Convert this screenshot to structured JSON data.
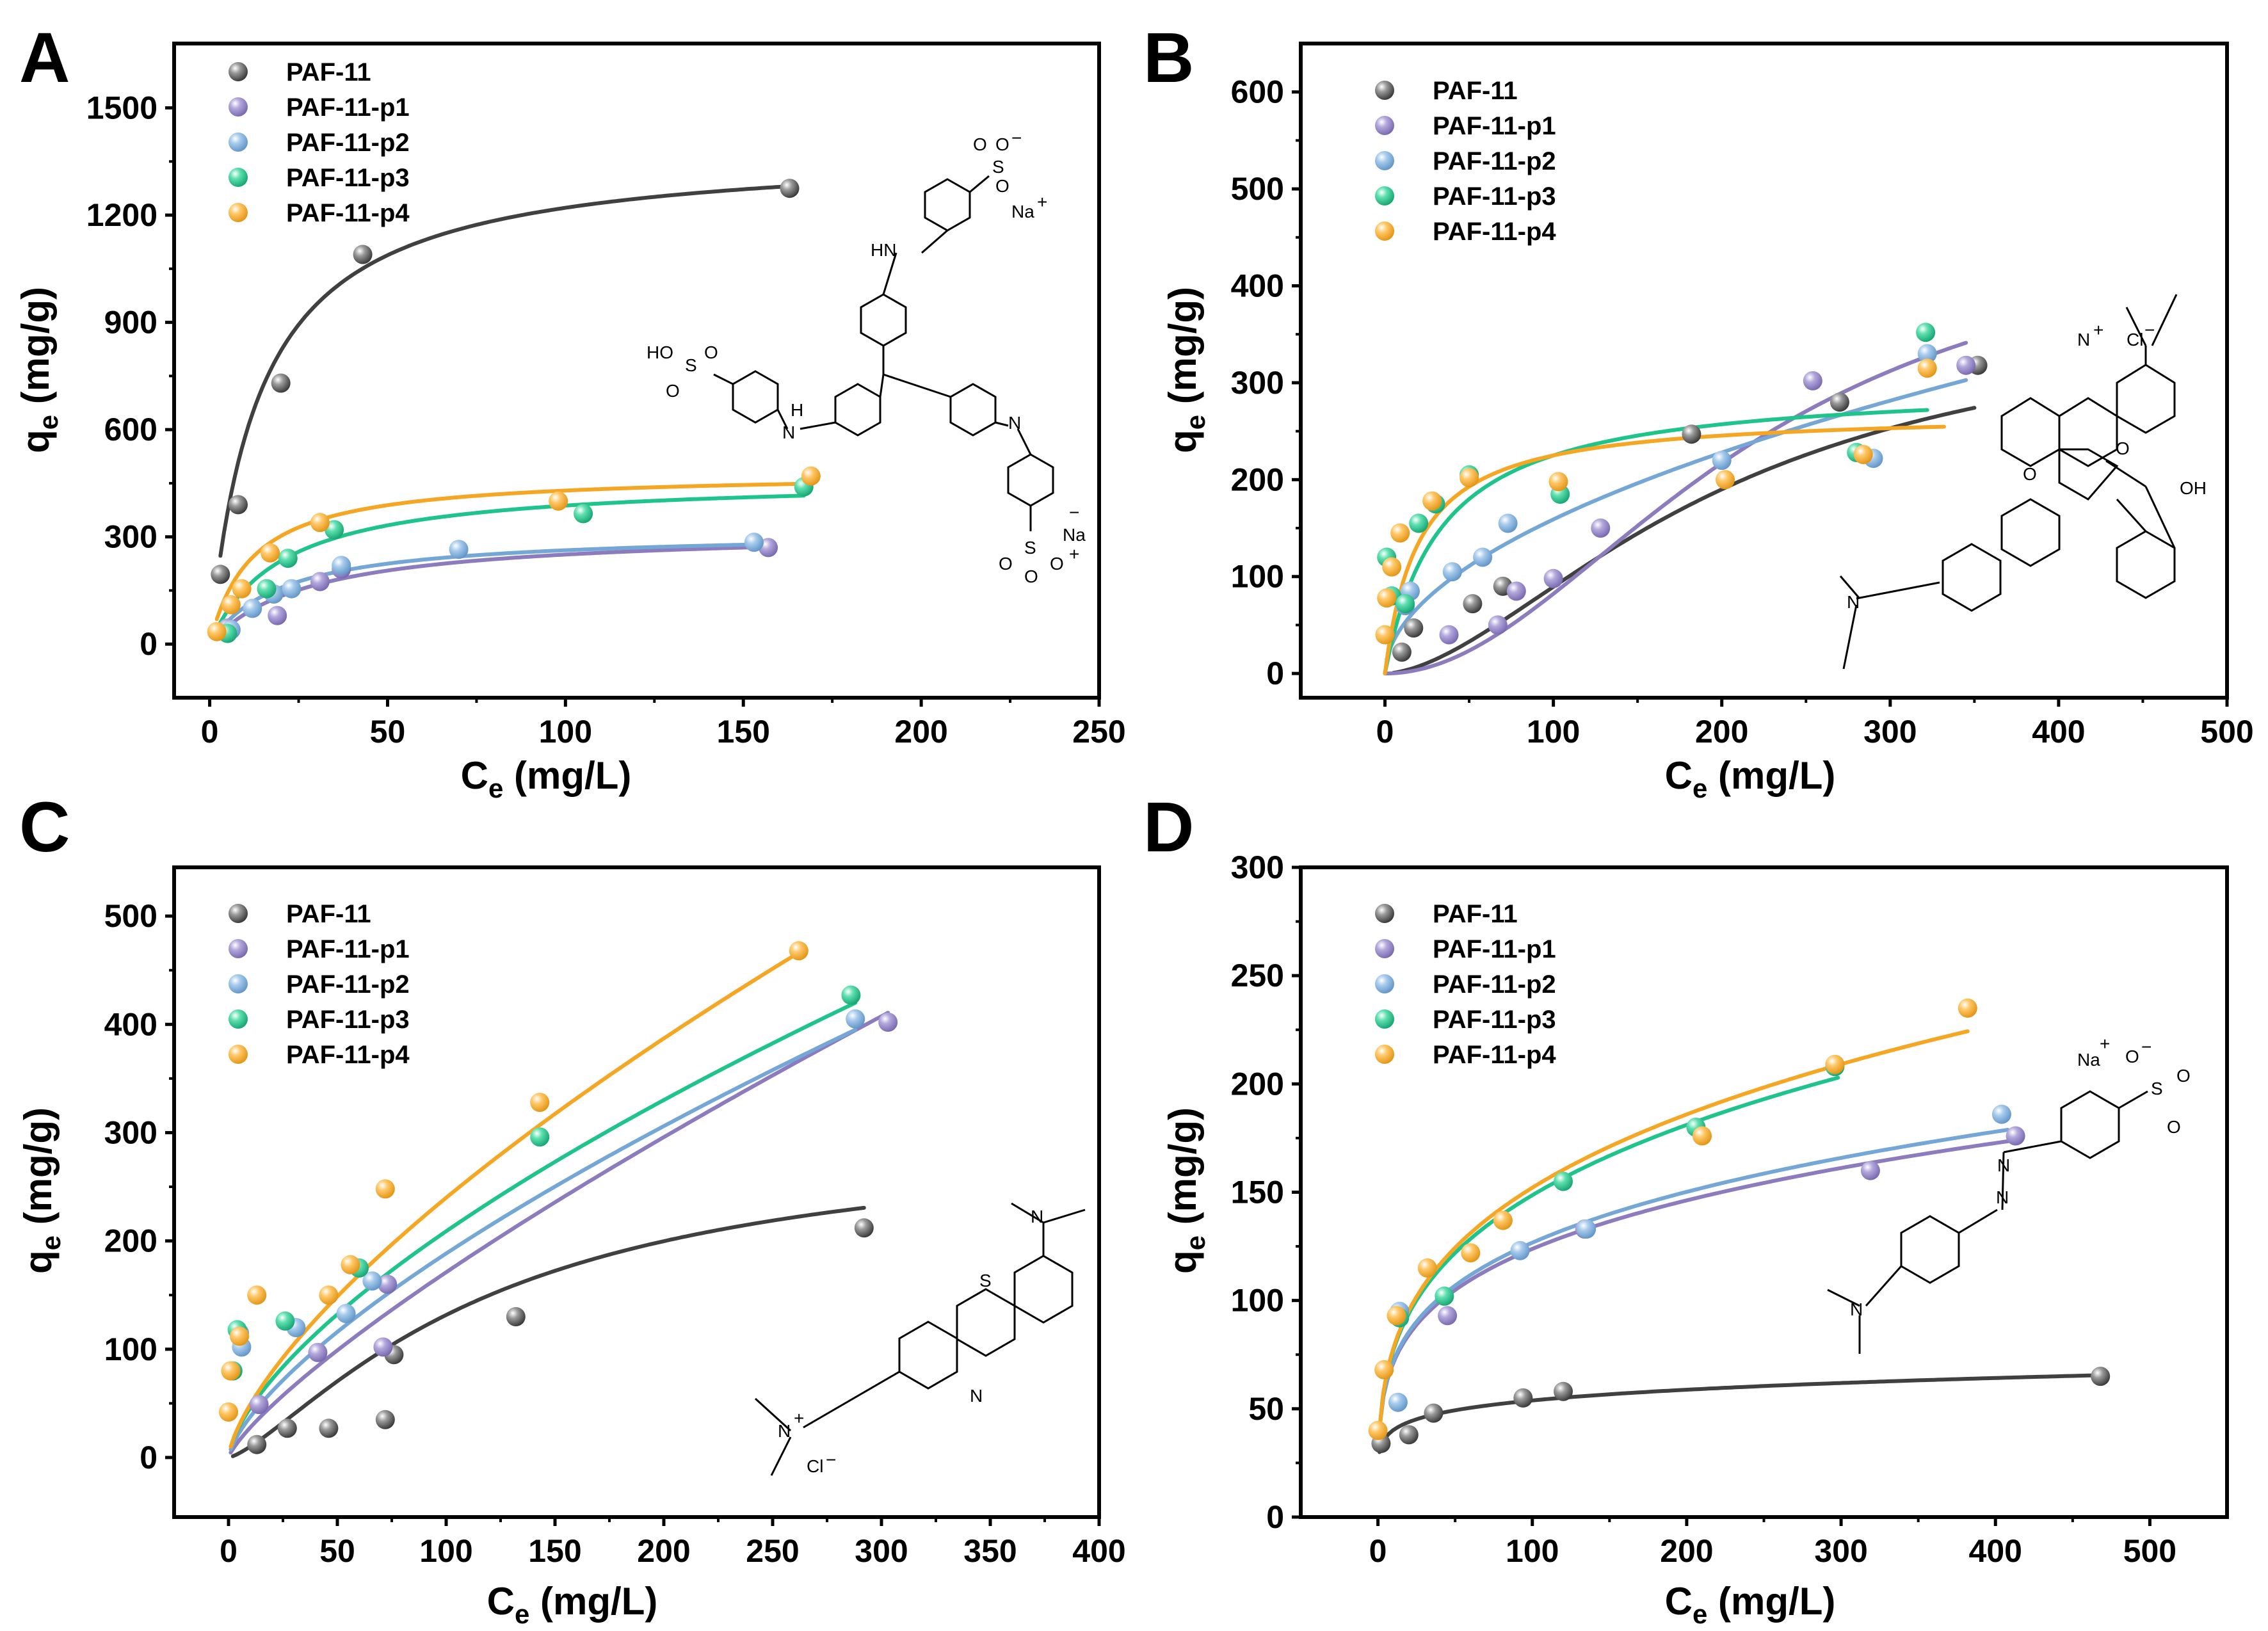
{
  "colors": {
    "PAF-11": "#404040",
    "PAF-11-p1": "#8c7bbd",
    "PAF-11-p2": "#74a6d6",
    "PAF-11-p3": "#1ec48a",
    "PAF-11-p4": "#f5a623"
  },
  "molecules": {
    "A": [
      "HO",
      "S",
      "O",
      "O",
      "H",
      "N",
      "HN",
      "S",
      "O",
      "O",
      "O",
      "−",
      "Na",
      "+",
      "N",
      "S",
      "O",
      "O",
      "O",
      "−",
      "Na",
      "+"
    ],
    "B": [
      "N",
      "+",
      "Cl",
      "−",
      "O",
      "N",
      "O",
      "OH"
    ],
    "C": [
      "N",
      "S",
      "N",
      "N",
      "+",
      "Cl",
      "−"
    ],
    "D": [
      "Na",
      "+",
      "O",
      "−",
      "S",
      "O",
      "O",
      "N",
      "N",
      "N"
    ]
  },
  "chart_data": [
    {
      "panel": "A",
      "type": "scatter",
      "xlabel": "C",
      "xlabel_sub": "e",
      "xlabel_unit": " (mg/L)",
      "ylabel": "q",
      "ylabel_sub": "e",
      "ylabel_unit": " (mg/g)",
      "xlim": [
        -10,
        250
      ],
      "ylim": [
        -150,
        1680
      ],
      "xticks": [
        0,
        50,
        100,
        150,
        200,
        250
      ],
      "yticks": [
        0,
        300,
        600,
        900,
        1200,
        1500
      ],
      "legend": "top-left",
      "grid": false,
      "series": [
        {
          "name": "PAF-11",
          "x": [
            3,
            8,
            20,
            43,
            163
          ],
          "y": [
            195,
            390,
            730,
            1090,
            1275
          ],
          "fit": {
            "model": "langmuir",
            "qm": 1390,
            "k": 0.072,
            "x0": 3,
            "x1": 163
          }
        },
        {
          "name": "PAF-11-p1",
          "x": [
            5,
            19,
            31,
            37,
            157
          ],
          "y": [
            45,
            80,
            175,
            210,
            270
          ],
          "fit": {
            "model": "langmuir",
            "qm": 320,
            "k": 0.036,
            "x0": 2,
            "x1": 157
          }
        },
        {
          "name": "PAF-11-p2",
          "x": [
            6,
            12,
            18,
            23,
            37,
            70,
            153
          ],
          "y": [
            40,
            100,
            140,
            155,
            220,
            265,
            285
          ],
          "fit": {
            "model": "langmuir",
            "qm": 315,
            "k": 0.05,
            "x0": 2,
            "x1": 153
          }
        },
        {
          "name": "PAF-11-p3",
          "x": [
            5,
            16,
            22,
            35,
            105,
            167
          ],
          "y": [
            30,
            155,
            240,
            320,
            365,
            440
          ],
          "fit": {
            "model": "langmuir",
            "qm": 465,
            "k": 0.05,
            "x0": 2,
            "x1": 167
          }
        },
        {
          "name": "PAF-11-p4",
          "x": [
            2,
            6,
            9,
            17,
            31,
            98,
            169
          ],
          "y": [
            35,
            110,
            155,
            255,
            340,
            400,
            470
          ],
          "fit": {
            "model": "langmuir",
            "qm": 480,
            "k": 0.085,
            "x0": 2,
            "x1": 169
          }
        }
      ]
    },
    {
      "panel": "B",
      "type": "scatter",
      "xlabel": "C",
      "xlabel_sub": "e",
      "xlabel_unit": " (mg/L)",
      "ylabel": "q",
      "ylabel_sub": "e",
      "ylabel_unit": " (mg/g)",
      "xlim": [
        -50,
        500
      ],
      "ylim": [
        -25,
        650
      ],
      "xticks": [
        0,
        100,
        200,
        300,
        400,
        500
      ],
      "yticks": [
        0,
        100,
        200,
        300,
        400,
        500,
        600
      ],
      "legend": "top-left",
      "grid": false,
      "series": [
        {
          "name": "PAF-11",
          "x": [
            10,
            17,
            52,
            70,
            182,
            270,
            352
          ],
          "y": [
            22,
            47,
            72,
            90,
            247,
            280,
            318
          ],
          "fit": {
            "model": "sigmoid",
            "qm": 380,
            "c50": 200,
            "n": 1.7,
            "x0": 5,
            "x1": 350
          }
        },
        {
          "name": "PAF-11-p1",
          "x": [
            38,
            67,
            78,
            100,
            128,
            254,
            345
          ],
          "y": [
            40,
            50,
            85,
            98,
            150,
            302,
            318
          ],
          "fit": {
            "model": "sigmoid",
            "qm": 480,
            "c50": 220,
            "n": 2.0,
            "x0": 0,
            "x1": 345
          }
        },
        {
          "name": "PAF-11-p2",
          "x": [
            12,
            15,
            40,
            58,
            73,
            200,
            290,
            322
          ],
          "y": [
            70,
            85,
            105,
            120,
            155,
            220,
            222,
            330
          ],
          "fit": {
            "model": "freundlich",
            "kf": 14.5,
            "n": 0.52,
            "x0": 1,
            "x1": 345
          }
        },
        {
          "name": "PAF-11-p3",
          "x": [
            1,
            4,
            12,
            20,
            30,
            50,
            104,
            280,
            321
          ],
          "y": [
            120,
            80,
            72,
            155,
            175,
            205,
            185,
            228,
            352
          ],
          "fit": {
            "model": "langmuir",
            "qm": 300,
            "k": 0.03,
            "x0": 0,
            "x1": 322
          }
        },
        {
          "name": "PAF-11-p4",
          "x": [
            0,
            1,
            4,
            9,
            28,
            50,
            103,
            202,
            284,
            322
          ],
          "y": [
            40,
            78,
            110,
            145,
            178,
            202,
            198,
            200,
            226,
            315
          ],
          "fit": {
            "model": "langmuir",
            "qm": 270,
            "k": 0.05,
            "x0": 0,
            "x1": 332
          }
        }
      ]
    },
    {
      "panel": "C",
      "type": "scatter",
      "xlabel": "C",
      "xlabel_sub": "e",
      "xlabel_unit": " (mg/L)",
      "ylabel": "q",
      "ylabel_sub": "e",
      "ylabel_unit": " (mg/g)",
      "xlim": [
        -25,
        400
      ],
      "ylim": [
        -55,
        545
      ],
      "xticks": [
        0,
        50,
        100,
        150,
        200,
        250,
        300,
        350,
        400
      ],
      "yticks": [
        0,
        100,
        200,
        300,
        400,
        500
      ],
      "legend": "top-left",
      "grid": false,
      "series": [
        {
          "name": "PAF-11",
          "x": [
            13,
            27,
            46,
            72,
            76,
            132,
            292
          ],
          "y": [
            12,
            27,
            27,
            35,
            95,
            130,
            212
          ],
          "fit": {
            "model": "sigmoid",
            "qm": 300,
            "c50": 120,
            "n": 1.35,
            "x0": 2,
            "x1": 292
          }
        },
        {
          "name": "PAF-11-p1",
          "x": [
            14,
            41,
            71,
            73,
            303
          ],
          "y": [
            49,
            97,
            102,
            160,
            402
          ],
          "fit": {
            "model": "freundlich",
            "kf": 4.5,
            "n": 0.79,
            "x0": 1,
            "x1": 303
          }
        },
        {
          "name": "PAF-11-p2",
          "x": [
            5,
            6,
            31,
            54,
            66,
            288
          ],
          "y": [
            115,
            102,
            120,
            133,
            163,
            405
          ],
          "fit": {
            "model": "freundlich",
            "kf": 7.5,
            "n": 0.7,
            "x0": 1,
            "x1": 288
          }
        },
        {
          "name": "PAF-11-p3",
          "x": [
            2,
            4,
            26,
            60,
            143,
            286
          ],
          "y": [
            80,
            118,
            126,
            175,
            296,
            427
          ],
          "fit": {
            "model": "freundlich",
            "kf": 10,
            "n": 0.66,
            "x0": 1,
            "x1": 288
          }
        },
        {
          "name": "PAF-11-p4",
          "x": [
            0,
            1,
            5,
            13,
            46,
            56,
            72,
            143,
            262
          ],
          "y": [
            42,
            80,
            112,
            150,
            150,
            178,
            248,
            328,
            468
          ],
          "fit": {
            "model": "freundlich",
            "kf": 10,
            "n": 0.69,
            "x0": 1,
            "x1": 262
          }
        }
      ]
    },
    {
      "panel": "D",
      "type": "scatter",
      "xlabel": "C",
      "xlabel_sub": "e",
      "xlabel_unit": " (mg/L)",
      "ylabel": "q",
      "ylabel_sub": "e",
      "ylabel_unit": " (mg/g)",
      "xlim": [
        -50,
        550
      ],
      "ylim": [
        0,
        300
      ],
      "xticks": [
        0,
        100,
        200,
        300,
        400,
        500
      ],
      "yticks": [
        0,
        50,
        100,
        150,
        200,
        250,
        300
      ],
      "legend": "top-left",
      "grid": false,
      "series": [
        {
          "name": "PAF-11",
          "x": [
            2,
            20,
            36,
            94,
            120,
            468
          ],
          "y": [
            34,
            38,
            48,
            55,
            58,
            65
          ],
          "fit": {
            "model": "freundlich",
            "kf": 30,
            "n": 0.127,
            "x0": 1,
            "x1": 468
          }
        },
        {
          "name": "PAF-11-p1",
          "x": [
            45,
            134,
            319,
            413
          ],
          "y": [
            93,
            133,
            160,
            176
          ],
          "fit": {
            "model": "freundlich",
            "kf": 41,
            "n": 0.24,
            "x0": 1,
            "x1": 413
          }
        },
        {
          "name": "PAF-11-p2",
          "x": [
            13,
            14,
            92,
            135,
            404
          ],
          "y": [
            53,
            95,
            123,
            133,
            186
          ],
          "fit": {
            "model": "freundlich",
            "kf": 41,
            "n": 0.245,
            "x0": 1,
            "x1": 408
          }
        },
        {
          "name": "PAF-11-p3",
          "x": [
            14,
            43,
            120,
            206,
            296
          ],
          "y": [
            92,
            102,
            155,
            180,
            208
          ],
          "fit": {
            "model": "freundlich",
            "kf": 40,
            "n": 0.285,
            "x0": 1,
            "x1": 298
          }
        },
        {
          "name": "PAF-11-p4",
          "x": [
            0,
            4,
            12,
            32,
            60,
            81,
            210,
            296,
            382
          ],
          "y": [
            40,
            68,
            93,
            115,
            122,
            137,
            176,
            209,
            235
          ],
          "fit": {
            "model": "freundlich",
            "kf": 40,
            "n": 0.29,
            "x0": 1,
            "x1": 382
          }
        }
      ]
    }
  ]
}
